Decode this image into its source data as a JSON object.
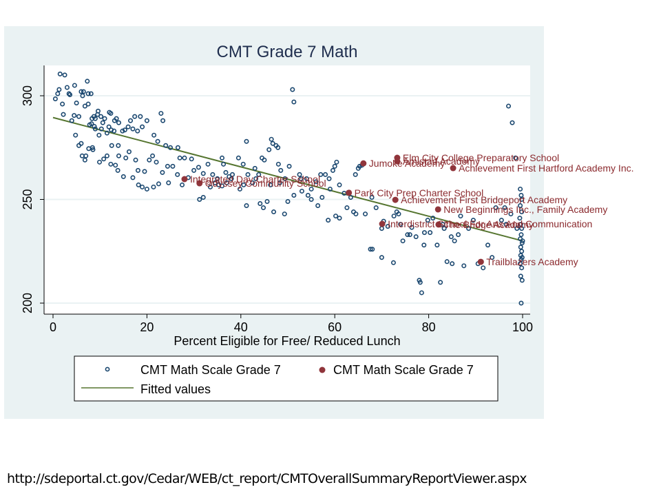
{
  "source_url": "http://sdeportal.ct.gov/Cedar/WEB/ct_report/CMTOverallSummaryReportViewer.aspx",
  "colors": {
    "panel_bg": "#eaf2f3",
    "plot_bg": "#ffffff",
    "hollow_marker": "#1a476f",
    "filled_marker": "#90353b",
    "label_text": "#8b2a2e",
    "fit_line": "#55752f",
    "title": "#1e2d4d",
    "grid": "#eaf2f3"
  },
  "chart_data": {
    "type": "scatter",
    "title": "CMT Grade 7 Math",
    "xlabel": "Percent Eligible for Free/ Reduced Lunch",
    "ylabel": "",
    "xlim": [
      0,
      100
    ],
    "ylim": [
      200,
      300
    ],
    "xticks": [
      "0",
      "20",
      "40",
      "60",
      "80",
      "100"
    ],
    "yticks": [
      "200",
      "250",
      "300"
    ],
    "grid": "horizontal",
    "legend": {
      "placement": "bottom",
      "entries": [
        {
          "label": "CMT Math Scale Grade 7",
          "marker": "hollow-circle"
        },
        {
          "label": "CMT Math Scale Grade 7",
          "marker": "filled-circle"
        },
        {
          "label": "Fitted values",
          "marker": "line"
        }
      ]
    },
    "series": [
      {
        "name": "CMT Math Scale Grade 7",
        "marker": "hollow-circle",
        "points": [
          [
            1.5,
            310.5
          ],
          [
            2.5,
            310
          ],
          [
            0.5,
            298.5
          ],
          [
            1,
            301
          ],
          [
            1.3,
            303
          ],
          [
            2,
            296
          ],
          [
            2.2,
            291
          ],
          [
            3,
            304
          ],
          [
            3.4,
            301
          ],
          [
            3.6,
            300.5
          ],
          [
            4,
            288
          ],
          [
            4.6,
            305
          ],
          [
            5,
            296.5
          ],
          [
            5.5,
            290
          ],
          [
            4.5,
            290.5
          ],
          [
            6,
            302
          ],
          [
            6.3,
            300
          ],
          [
            6.5,
            302
          ],
          [
            7.3,
            307
          ],
          [
            7.5,
            301
          ],
          [
            6.8,
            295
          ],
          [
            7.5,
            296
          ],
          [
            8.1,
            301
          ],
          [
            8.7,
            290
          ],
          [
            9,
            289
          ],
          [
            8.3,
            289
          ],
          [
            9.5,
            291
          ],
          [
            9.6,
            292.6
          ],
          [
            10.2,
            290
          ],
          [
            10.6,
            287
          ],
          [
            7.8,
            286
          ],
          [
            8.2,
            286.5
          ],
          [
            8.8,
            285.2
          ],
          [
            9,
            284
          ],
          [
            11,
            289
          ],
          [
            12,
            292
          ],
          [
            12.3,
            291.5
          ],
          [
            13.5,
            289
          ],
          [
            14,
            287
          ],
          [
            13.1,
            288
          ],
          [
            11.9,
            285
          ],
          [
            12.4,
            283.5
          ],
          [
            13,
            283
          ],
          [
            14.8,
            283
          ],
          [
            15.3,
            283.5
          ],
          [
            16,
            285
          ],
          [
            16.5,
            288
          ],
          [
            17.4,
            290
          ],
          [
            17,
            284
          ],
          [
            18.6,
            290
          ],
          [
            18,
            283
          ],
          [
            19,
            285
          ],
          [
            20,
            288
          ],
          [
            21.5,
            281
          ],
          [
            22.3,
            278
          ],
          [
            23,
            291.5
          ],
          [
            23.4,
            288
          ],
          [
            24,
            276
          ],
          [
            25,
            275
          ],
          [
            26.6,
            275
          ],
          [
            28,
            270
          ],
          [
            29.5,
            269.5
          ],
          [
            24.4,
            266
          ],
          [
            25.5,
            266
          ],
          [
            27,
            270
          ],
          [
            4.8,
            281
          ],
          [
            5.5,
            276
          ],
          [
            6,
            277
          ],
          [
            6.2,
            271
          ],
          [
            7.6,
            274.5
          ],
          [
            8.4,
            275
          ],
          [
            9.8,
            281
          ],
          [
            10.3,
            284
          ],
          [
            11.5,
            282
          ],
          [
            12.5,
            276
          ],
          [
            13.9,
            276
          ],
          [
            14,
            271
          ],
          [
            15.5,
            270
          ],
          [
            16.2,
            273
          ],
          [
            17.6,
            269
          ],
          [
            18.1,
            264
          ],
          [
            19.5,
            263.5
          ],
          [
            20.5,
            269
          ],
          [
            21.2,
            271
          ],
          [
            22,
            268
          ],
          [
            22.5,
            257.5
          ],
          [
            23.3,
            263
          ],
          [
            24.6,
            258
          ],
          [
            26.5,
            262
          ],
          [
            28.8,
            260.5
          ],
          [
            6.8,
            269
          ],
          [
            7,
            271
          ],
          [
            8.5,
            274
          ],
          [
            9.9,
            268
          ],
          [
            10.8,
            269.5
          ],
          [
            11.5,
            271
          ],
          [
            12.3,
            267
          ],
          [
            13.3,
            266.5
          ],
          [
            13.8,
            264
          ],
          [
            15,
            261
          ],
          [
            17,
            260.5
          ],
          [
            18.2,
            257
          ],
          [
            19,
            256
          ],
          [
            20,
            255
          ],
          [
            21.4,
            256
          ],
          [
            27.5,
            257
          ],
          [
            30,
            264
          ],
          [
            31,
            265.5
          ],
          [
            32,
            262.5
          ],
          [
            33,
            267
          ],
          [
            34,
            262
          ],
          [
            35,
            260
          ],
          [
            36,
            270
          ],
          [
            36.3,
            267
          ],
          [
            36.8,
            263
          ],
          [
            37.5,
            261
          ],
          [
            38.2,
            262
          ],
          [
            39.5,
            270
          ],
          [
            40.5,
            267
          ],
          [
            41.2,
            278
          ],
          [
            41.5,
            262
          ],
          [
            42.5,
            258
          ],
          [
            43,
            265
          ],
          [
            43.8,
            262
          ],
          [
            44.5,
            270
          ],
          [
            45,
            269
          ],
          [
            46,
            274
          ],
          [
            46.5,
            279
          ],
          [
            46.8,
            277
          ],
          [
            47.5,
            276
          ],
          [
            47.9,
            275
          ],
          [
            48,
            267
          ],
          [
            48.5,
            264
          ],
          [
            49.4,
            260
          ],
          [
            50.3,
            266
          ],
          [
            51,
            303
          ],
          [
            51.3,
            297
          ],
          [
            52.5,
            262
          ],
          [
            53,
            254
          ],
          [
            54,
            260
          ],
          [
            55,
            255
          ],
          [
            56,
            258.5
          ],
          [
            57,
            262
          ],
          [
            58,
            262
          ],
          [
            58.8,
            260
          ],
          [
            59.6,
            264
          ],
          [
            60,
            266
          ],
          [
            60.4,
            268
          ],
          [
            61,
            257
          ],
          [
            62,
            253
          ],
          [
            64.4,
            262
          ],
          [
            65,
            265
          ],
          [
            65.3,
            266
          ],
          [
            65.8,
            266.5
          ],
          [
            31.2,
            250
          ],
          [
            32,
            251
          ],
          [
            33.5,
            256
          ],
          [
            34.5,
            258
          ],
          [
            35.3,
            257
          ],
          [
            36,
            256.5
          ],
          [
            37,
            258
          ],
          [
            38,
            260
          ],
          [
            39.8,
            255
          ],
          [
            40.6,
            257
          ],
          [
            41.2,
            247
          ],
          [
            43.2,
            260
          ],
          [
            44.1,
            248
          ],
          [
            44.8,
            246
          ],
          [
            45.6,
            249
          ],
          [
            46.3,
            257
          ],
          [
            47,
            244
          ],
          [
            48.3,
            258
          ],
          [
            49.3,
            243
          ],
          [
            50,
            249
          ],
          [
            51.3,
            252
          ],
          [
            52.8,
            260
          ],
          [
            54.3,
            252
          ],
          [
            55,
            250
          ],
          [
            56.4,
            247
          ],
          [
            57.3,
            251
          ],
          [
            58.6,
            240
          ],
          [
            59,
            255
          ],
          [
            60.2,
            242
          ],
          [
            61,
            241
          ],
          [
            62.6,
            246
          ],
          [
            63.4,
            251
          ],
          [
            64,
            244
          ],
          [
            64.5,
            243
          ],
          [
            66.5,
            243
          ],
          [
            67.6,
            226
          ],
          [
            67.9,
            251
          ],
          [
            68.8,
            246
          ],
          [
            70,
            236
          ],
          [
            70.4,
            239.5
          ],
          [
            71.3,
            237
          ],
          [
            72.6,
            242
          ],
          [
            73.2,
            244
          ],
          [
            73.6,
            243
          ],
          [
            74.5,
            230
          ],
          [
            75.5,
            233
          ],
          [
            76.4,
            236.5
          ],
          [
            77.3,
            232
          ],
          [
            78,
            211
          ],
          [
            78.2,
            210
          ],
          [
            78.5,
            205
          ],
          [
            79.1,
            234
          ],
          [
            79.8,
            240
          ],
          [
            80.3,
            234
          ],
          [
            80.9,
            241
          ],
          [
            81.8,
            228
          ],
          [
            82.5,
            210
          ],
          [
            83.3,
            236
          ],
          [
            83.9,
            220
          ],
          [
            84.8,
            232
          ],
          [
            85.5,
            230
          ],
          [
            86.3,
            233
          ],
          [
            86.8,
            242
          ],
          [
            87.5,
            218
          ],
          [
            88.5,
            236
          ],
          [
            89.5,
            240
          ],
          [
            90.5,
            219
          ],
          [
            91.6,
            217
          ],
          [
            92.6,
            228
          ],
          [
            93.5,
            222
          ],
          [
            94.3,
            246
          ],
          [
            95.5,
            240
          ],
          [
            96.2,
            246
          ],
          [
            97,
            295
          ],
          [
            97.8,
            287
          ],
          [
            98.5,
            270
          ],
          [
            99.5,
            255
          ],
          [
            99.7,
            252
          ],
          [
            99.8,
            250
          ],
          [
            99.5,
            247
          ],
          [
            99.8,
            244
          ],
          [
            99.4,
            241
          ],
          [
            99.6,
            238
          ],
          [
            99.8,
            236
          ],
          [
            99.7,
            233
          ],
          [
            99.5,
            231
          ],
          [
            99.9,
            229
          ],
          [
            99.6,
            227
          ],
          [
            99.8,
            225
          ],
          [
            99.6,
            223
          ],
          [
            99.9,
            222
          ],
          [
            99.7,
            221
          ],
          [
            99.5,
            219
          ],
          [
            99.8,
            217
          ],
          [
            99.6,
            213
          ],
          [
            99.9,
            211
          ],
          [
            99.7,
            200
          ],
          [
            98.8,
            236
          ],
          [
            97.5,
            243
          ],
          [
            96.5,
            238
          ],
          [
            83,
            238
          ],
          [
            79,
            228
          ],
          [
            72.5,
            219.5
          ],
          [
            70,
            222
          ],
          [
            68,
            226
          ],
          [
            85,
            219
          ],
          [
            76,
            233
          ],
          [
            74,
            238
          ],
          [
            100,
            230
          ]
        ]
      },
      {
        "name": "CMT Math Scale Grade 7",
        "marker": "filled-circle",
        "points": [
          {
            "x": 28.0,
            "y": 259.8,
            "label": "Integrated Day Charter School"
          },
          {
            "x": 31.2,
            "y": 257.8,
            "label": "Odyssey Community School"
          },
          {
            "x": 66.1,
            "y": 267.4,
            "label": "Jumoke Academy"
          },
          {
            "x": 73.3,
            "y": 270.1,
            "label": "Elm City College Preparatory School"
          },
          {
            "x": 73.3,
            "y": 268.4,
            "label": "Amistad Academy"
          },
          {
            "x": 85.2,
            "y": 265.1,
            "label": "Achievement First Hartford Academy Inc."
          },
          {
            "x": 63.0,
            "y": 253.2,
            "label": "Park City Prep Charter School"
          },
          {
            "x": 72.9,
            "y": 249.8,
            "label": "Achievement First Bridgeport Academy"
          },
          {
            "x": 82.0,
            "y": 245.2,
            "label": "New Beginnings Inc., Family Academy"
          },
          {
            "x": 70.1,
            "y": 238.2,
            "label": "Interdistrict School For Arts And Communication"
          },
          {
            "x": 82.1,
            "y": 237.9,
            "label": "The Bridge Academy"
          },
          {
            "x": 91.1,
            "y": 219.9,
            "label": "Trailblazers Academy"
          }
        ]
      },
      {
        "name": "Fitted values",
        "marker": "line",
        "points": [
          [
            0,
            289.5
          ],
          [
            100,
            230.0
          ]
        ]
      }
    ]
  }
}
